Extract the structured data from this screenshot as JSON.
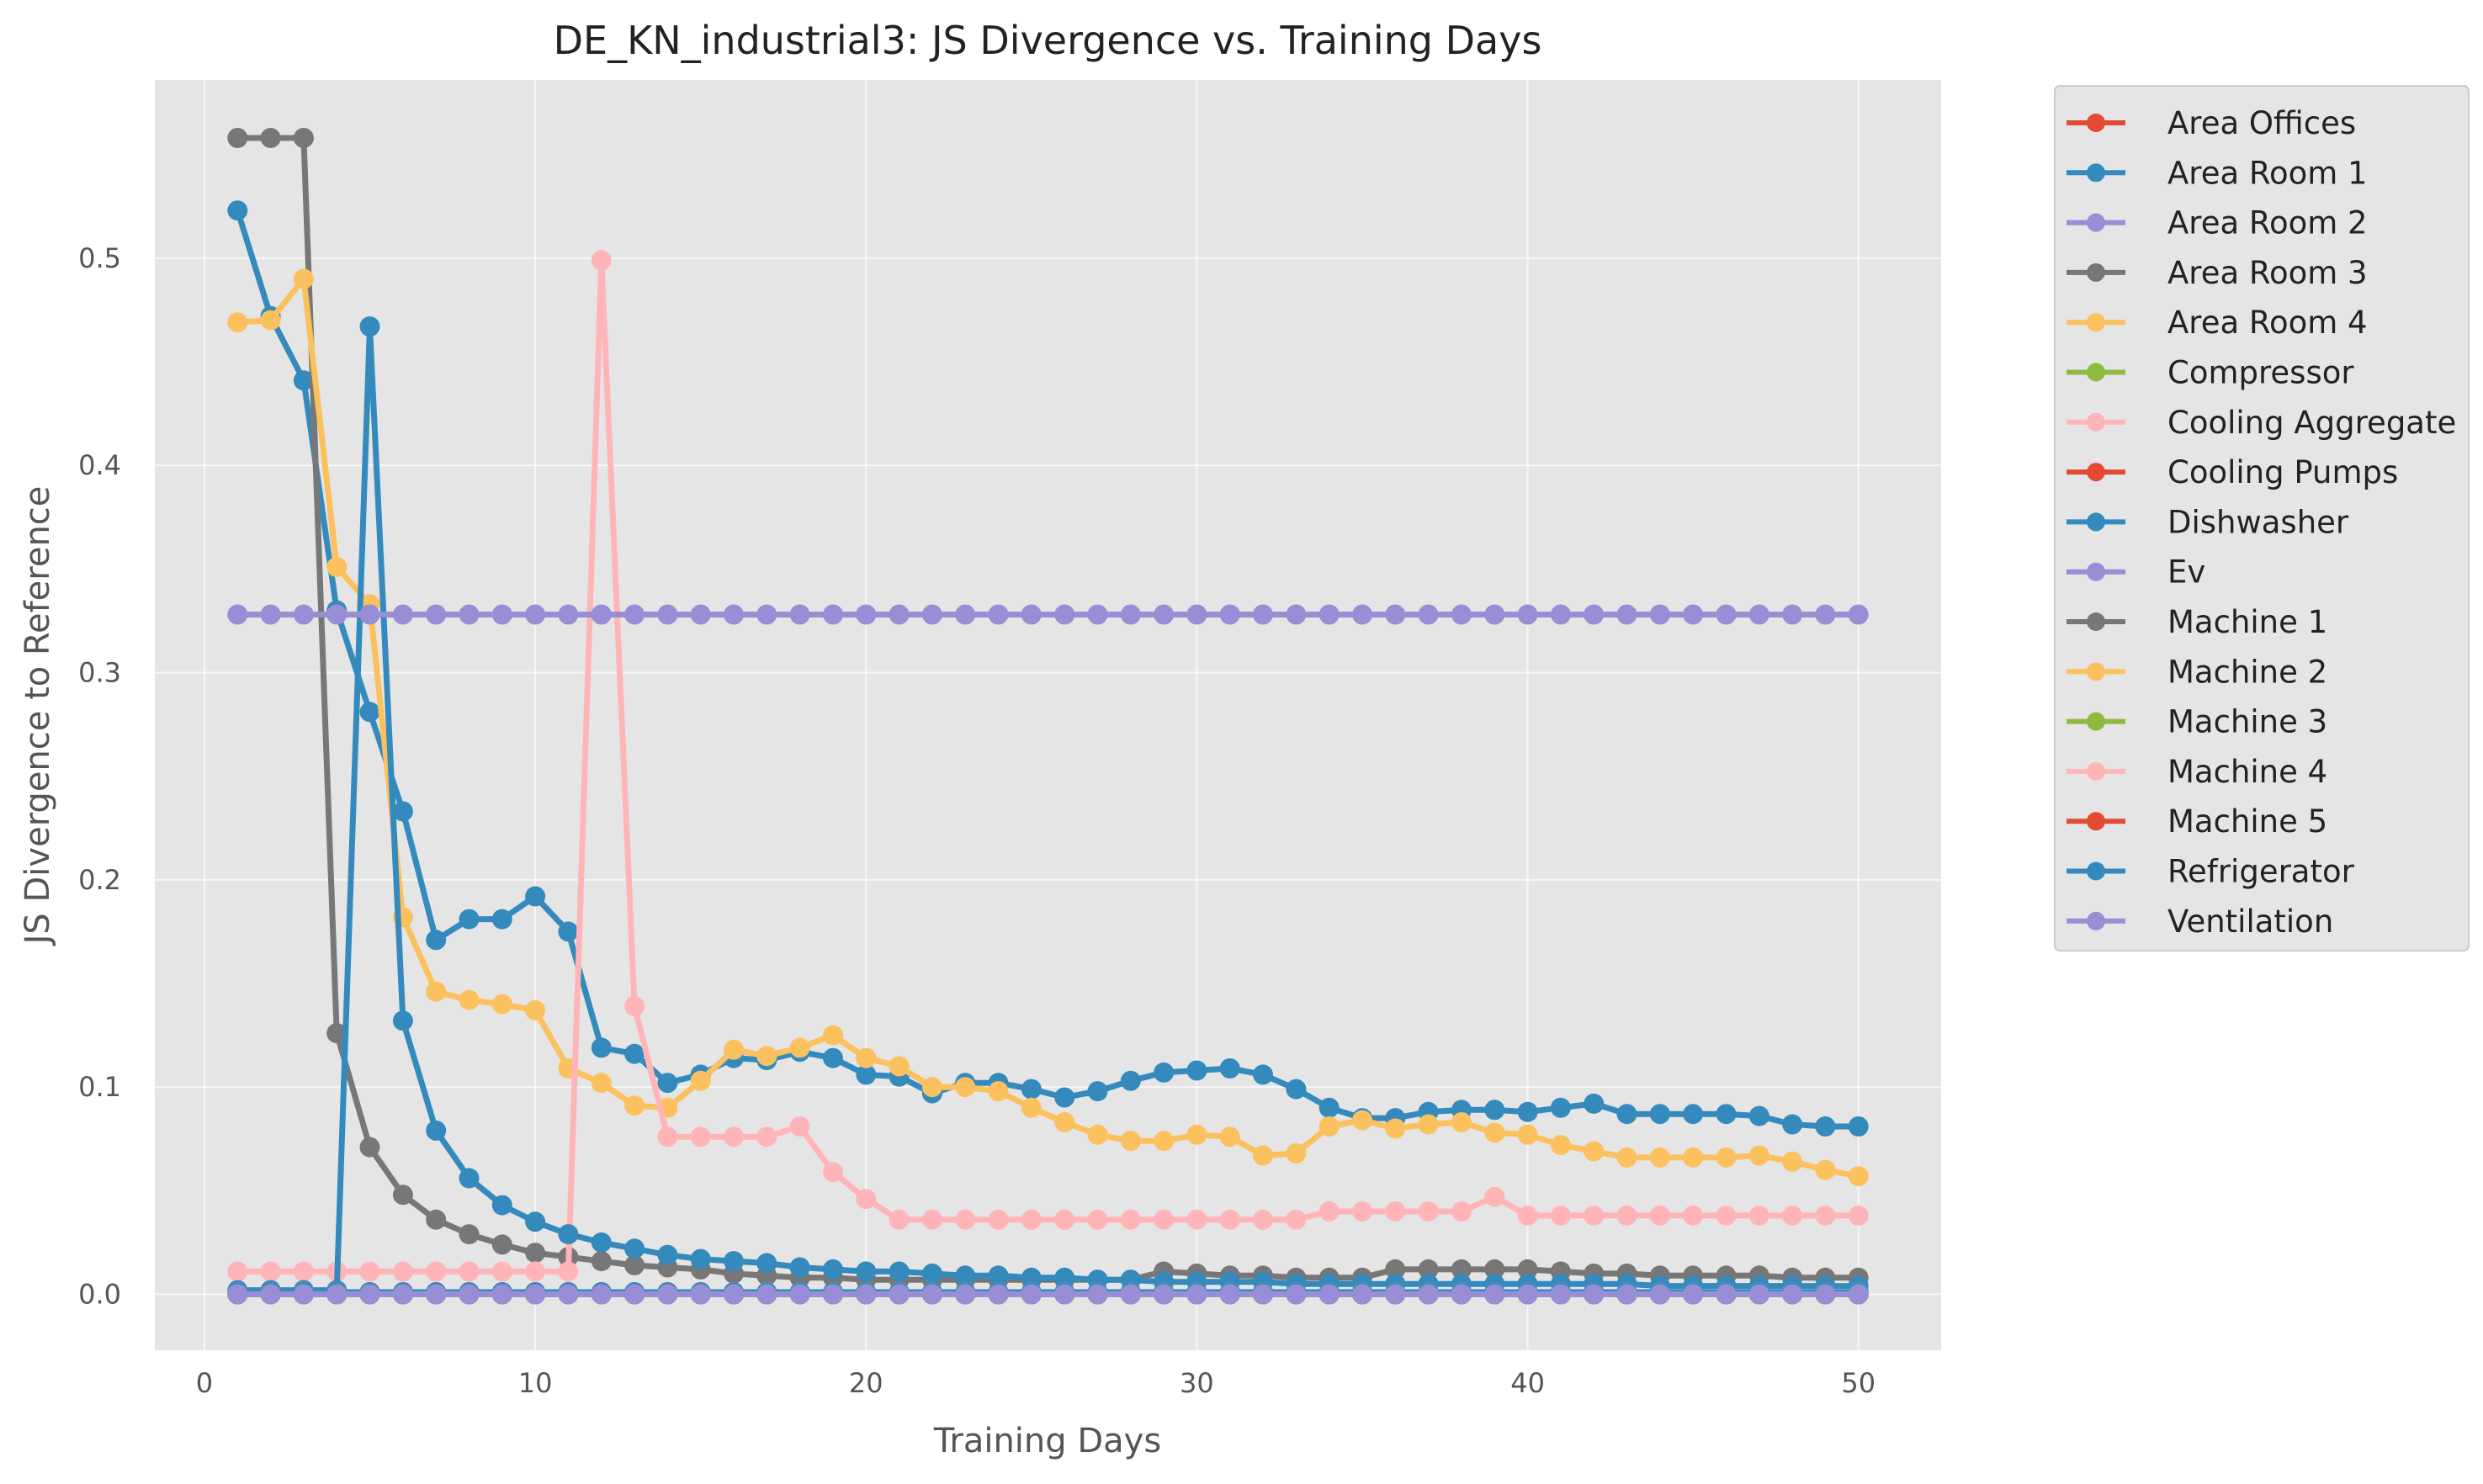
{
  "chart_data": {
    "type": "line",
    "title": "DE_KN_industrial3: JS Divergence vs. Training Days",
    "xlabel": "Training Days",
    "ylabel": "JS Divergence to Reference",
    "xlim": [
      -1.5,
      52.5
    ],
    "ylim": [
      -0.027,
      0.586
    ],
    "xticks": [
      0,
      10,
      20,
      30,
      40,
      50
    ],
    "yticks": [
      0.0,
      0.1,
      0.2,
      0.3,
      0.4,
      0.5
    ],
    "ytick_labels": [
      "0.0",
      "0.1",
      "0.2",
      "0.3",
      "0.4",
      "0.5"
    ],
    "grid": true,
    "legend_position": "outside-right",
    "x": [
      1,
      2,
      3,
      4,
      5,
      6,
      7,
      8,
      9,
      10,
      11,
      12,
      13,
      14,
      15,
      16,
      17,
      18,
      19,
      20,
      21,
      22,
      23,
      24,
      25,
      26,
      27,
      28,
      29,
      30,
      31,
      32,
      33,
      34,
      35,
      36,
      37,
      38,
      39,
      40,
      41,
      42,
      43,
      44,
      45,
      46,
      47,
      48,
      49,
      50
    ],
    "series": [
      {
        "name": "Area Offices",
        "color": "#E24A33",
        "values": [
          0.001,
          0.001,
          0.001,
          0.001,
          0.001,
          0.001,
          0.001,
          0.001,
          0.001,
          0.001,
          0.001,
          0.001,
          0.001,
          0.001,
          0.001,
          0.001,
          0.001,
          0.001,
          0.001,
          0.001,
          0.001,
          0.001,
          0.001,
          0.001,
          0.001,
          0.001,
          0.001,
          0.001,
          0.001,
          0.001,
          0.001,
          0.001,
          0.001,
          0.001,
          0.001,
          0.001,
          0.001,
          0.001,
          0.001,
          0.001,
          0.001,
          0.001,
          0.001,
          0.001,
          0.001,
          0.001,
          0.001,
          0.001,
          0.001,
          0.001
        ]
      },
      {
        "name": "Area Room 1",
        "color": "#348ABD",
        "values": [
          0.523,
          0.472,
          0.441,
          0.33,
          0.281,
          0.233,
          0.171,
          0.181,
          0.181,
          0.192,
          0.175,
          0.119,
          0.116,
          0.102,
          0.106,
          0.114,
          0.113,
          0.117,
          0.114,
          0.106,
          0.105,
          0.097,
          0.102,
          0.102,
          0.099,
          0.095,
          0.098,
          0.103,
          0.107,
          0.108,
          0.109,
          0.106,
          0.099,
          0.09,
          0.085,
          0.085,
          0.088,
          0.089,
          0.089,
          0.088,
          0.09,
          0.092,
          0.087,
          0.087,
          0.087,
          0.087,
          0.086,
          0.082,
          0.081,
          0.081
        ]
      },
      {
        "name": "Area Room 2",
        "color": "#988ED5",
        "values": [
          0.0,
          0.0,
          0.0,
          0.0,
          0.0,
          0.0,
          0.0,
          0.0,
          0.0,
          0.0,
          0.0,
          0.0,
          0.0,
          0.0,
          0.0,
          0.0,
          0.0,
          0.0,
          0.0,
          0.0,
          0.0,
          0.0,
          0.0,
          0.0,
          0.0,
          0.0,
          0.0,
          0.0,
          0.0,
          0.0,
          0.0,
          0.0,
          0.0,
          0.0,
          0.0,
          0.0,
          0.0,
          0.0,
          0.0,
          0.0,
          0.0,
          0.0,
          0.0,
          0.0,
          0.0,
          0.0,
          0.0,
          0.0,
          0.0,
          0.0
        ]
      },
      {
        "name": "Area Room 3",
        "color": "#777777",
        "values": [
          0.558,
          0.558,
          0.558,
          0.126,
          0.071,
          0.048,
          0.036,
          0.029,
          0.024,
          0.02,
          0.018,
          0.016,
          0.014,
          0.013,
          0.012,
          0.01,
          0.009,
          0.008,
          0.008,
          0.007,
          0.007,
          0.007,
          0.007,
          0.007,
          0.007,
          0.007,
          0.007,
          0.007,
          0.011,
          0.01,
          0.009,
          0.009,
          0.008,
          0.008,
          0.008,
          0.012,
          0.012,
          0.012,
          0.012,
          0.012,
          0.011,
          0.01,
          0.01,
          0.009,
          0.009,
          0.009,
          0.009,
          0.008,
          0.008,
          0.008
        ]
      },
      {
        "name": "Area Room 4",
        "color": "#FBC15E",
        "values": [
          0.469,
          0.47,
          0.49,
          0.351,
          0.333,
          0.182,
          0.146,
          0.142,
          0.14,
          0.137,
          0.109,
          0.102,
          0.091,
          0.09,
          0.103,
          0.118,
          0.115,
          0.119,
          0.125,
          0.114,
          0.11,
          0.1,
          0.1,
          0.098,
          0.09,
          0.083,
          0.077,
          0.074,
          0.074,
          0.077,
          0.076,
          0.067,
          0.068,
          0.081,
          0.084,
          0.08,
          0.082,
          0.083,
          0.078,
          0.077,
          0.072,
          0.069,
          0.066,
          0.066,
          0.066,
          0.066,
          0.067,
          0.064,
          0.06,
          0.057
        ]
      },
      {
        "name": "Compressor",
        "color": "#8EBA42",
        "values": [
          0.0,
          0.0,
          0.0,
          0.0,
          0.0,
          0.0,
          0.0,
          0.0,
          0.0,
          0.0,
          0.0,
          0.0,
          0.0,
          0.0,
          0.0,
          0.0,
          0.0,
          0.0,
          0.0,
          0.0,
          0.0,
          0.0,
          0.0,
          0.0,
          0.0,
          0.0,
          0.0,
          0.0,
          0.0,
          0.0,
          0.0,
          0.0,
          0.0,
          0.0,
          0.0,
          0.0,
          0.0,
          0.0,
          0.0,
          0.0,
          0.0,
          0.0,
          0.0,
          0.0,
          0.0,
          0.0,
          0.0,
          0.0,
          0.0,
          0.0
        ]
      },
      {
        "name": "Cooling Aggregate",
        "color": "#FFB5B8",
        "values": [
          0.011,
          0.011,
          0.011,
          0.011,
          0.011,
          0.011,
          0.011,
          0.011,
          0.011,
          0.011,
          0.011,
          0.499,
          0.139,
          0.076,
          0.076,
          0.076,
          0.076,
          0.081,
          0.059,
          0.046,
          0.036,
          0.036,
          0.036,
          0.036,
          0.036,
          0.036,
          0.036,
          0.036,
          0.036,
          0.036,
          0.036,
          0.036,
          0.036,
          0.04,
          0.04,
          0.04,
          0.04,
          0.04,
          0.047,
          0.038,
          0.038,
          0.038,
          0.038,
          0.038,
          0.038,
          0.038,
          0.038,
          0.038,
          0.038,
          0.038
        ]
      },
      {
        "name": "Cooling Pumps",
        "color": "#E24A33",
        "values": [
          0.0,
          0.0,
          0.0,
          0.0,
          0.0,
          0.0,
          0.0,
          0.0,
          0.0,
          0.0,
          0.0,
          0.0,
          0.0,
          0.0,
          0.0,
          0.0,
          0.0,
          0.0,
          0.0,
          0.0,
          0.0,
          0.0,
          0.0,
          0.0,
          0.0,
          0.0,
          0.0,
          0.0,
          0.0,
          0.0,
          0.0,
          0.0,
          0.0,
          0.0,
          0.0,
          0.0,
          0.0,
          0.0,
          0.0,
          0.0,
          0.0,
          0.0,
          0.0,
          0.0,
          0.0,
          0.0,
          0.0,
          0.0,
          0.0,
          0.0
        ]
      },
      {
        "name": "Dishwasher",
        "color": "#348ABD",
        "values": [
          0.002,
          0.002,
          0.002,
          0.002,
          0.467,
          0.132,
          0.079,
          0.056,
          0.043,
          0.035,
          0.029,
          0.025,
          0.022,
          0.019,
          0.017,
          0.016,
          0.015,
          0.013,
          0.012,
          0.011,
          0.011,
          0.01,
          0.009,
          0.009,
          0.008,
          0.008,
          0.007,
          0.007,
          0.006,
          0.006,
          0.006,
          0.006,
          0.005,
          0.005,
          0.005,
          0.005,
          0.005,
          0.005,
          0.005,
          0.005,
          0.005,
          0.005,
          0.005,
          0.004,
          0.004,
          0.004,
          0.004,
          0.004,
          0.004,
          0.004
        ]
      },
      {
        "name": "Ev",
        "color": "#988ED5",
        "values": [
          0.328,
          0.328,
          0.328,
          0.328,
          0.328,
          0.328,
          0.328,
          0.328,
          0.328,
          0.328,
          0.328,
          0.328,
          0.328,
          0.328,
          0.328,
          0.328,
          0.328,
          0.328,
          0.328,
          0.328,
          0.328,
          0.328,
          0.328,
          0.328,
          0.328,
          0.328,
          0.328,
          0.328,
          0.328,
          0.328,
          0.328,
          0.328,
          0.328,
          0.328,
          0.328,
          0.328,
          0.328,
          0.328,
          0.328,
          0.328,
          0.328,
          0.328,
          0.328,
          0.328,
          0.328,
          0.328,
          0.328,
          0.328,
          0.328,
          0.328
        ]
      },
      {
        "name": "Machine 1",
        "color": "#777777",
        "values": [
          0.001,
          0.001,
          0.001,
          0.001,
          0.001,
          0.001,
          0.001,
          0.001,
          0.001,
          0.001,
          0.001,
          0.001,
          0.001,
          0.001,
          0.001,
          0.001,
          0.001,
          0.001,
          0.001,
          0.001,
          0.001,
          0.001,
          0.001,
          0.001,
          0.001,
          0.001,
          0.001,
          0.001,
          0.001,
          0.001,
          0.001,
          0.001,
          0.001,
          0.001,
          0.001,
          0.001,
          0.001,
          0.001,
          0.001,
          0.001,
          0.001,
          0.001,
          0.001,
          0.001,
          0.001,
          0.001,
          0.001,
          0.001,
          0.001,
          0.001
        ]
      },
      {
        "name": "Machine 2",
        "color": "#FBC15E",
        "values": [
          0.001,
          0.001,
          0.001,
          0.001,
          0.001,
          0.001,
          0.001,
          0.001,
          0.001,
          0.001,
          0.001,
          0.001,
          0.001,
          0.001,
          0.001,
          0.001,
          0.001,
          0.001,
          0.001,
          0.001,
          0.001,
          0.001,
          0.001,
          0.001,
          0.001,
          0.001,
          0.001,
          0.001,
          0.001,
          0.001,
          0.001,
          0.001,
          0.001,
          0.001,
          0.001,
          0.001,
          0.001,
          0.001,
          0.001,
          0.001,
          0.001,
          0.001,
          0.001,
          0.001,
          0.001,
          0.001,
          0.001,
          0.001,
          0.001,
          0.001
        ]
      },
      {
        "name": "Machine 3",
        "color": "#8EBA42",
        "values": [
          0.0,
          0.0,
          0.0,
          0.0,
          0.0,
          0.0,
          0.0,
          0.0,
          0.0,
          0.0,
          0.0,
          0.0,
          0.0,
          0.0,
          0.0,
          0.0,
          0.0,
          0.0,
          0.0,
          0.0,
          0.0,
          0.0,
          0.0,
          0.0,
          0.0,
          0.0,
          0.0,
          0.0,
          0.0,
          0.0,
          0.0,
          0.0,
          0.0,
          0.0,
          0.0,
          0.0,
          0.0,
          0.0,
          0.0,
          0.0,
          0.0,
          0.0,
          0.0,
          0.0,
          0.0,
          0.0,
          0.0,
          0.0,
          0.0,
          0.0
        ]
      },
      {
        "name": "Machine 4",
        "color": "#FFB5B8",
        "values": [
          0.001,
          0.001,
          0.001,
          0.001,
          0.001,
          0.001,
          0.001,
          0.001,
          0.001,
          0.001,
          0.001,
          0.001,
          0.001,
          0.001,
          0.001,
          0.001,
          0.001,
          0.001,
          0.001,
          0.001,
          0.001,
          0.001,
          0.001,
          0.001,
          0.001,
          0.001,
          0.001,
          0.001,
          0.001,
          0.001,
          0.001,
          0.001,
          0.001,
          0.001,
          0.001,
          0.001,
          0.001,
          0.001,
          0.001,
          0.001,
          0.001,
          0.001,
          0.001,
          0.001,
          0.001,
          0.001,
          0.001,
          0.001,
          0.001,
          0.001
        ]
      },
      {
        "name": "Machine 5",
        "color": "#E24A33",
        "values": [
          0.0,
          0.0,
          0.0,
          0.0,
          0.0,
          0.0,
          0.0,
          0.0,
          0.0,
          0.0,
          0.0,
          0.0,
          0.0,
          0.0,
          0.0,
          0.0,
          0.0,
          0.0,
          0.0,
          0.0,
          0.0,
          0.0,
          0.0,
          0.0,
          0.0,
          0.0,
          0.0,
          0.0,
          0.0,
          0.0,
          0.0,
          0.0,
          0.0,
          0.0,
          0.0,
          0.0,
          0.0,
          0.0,
          0.0,
          0.0,
          0.0,
          0.0,
          0.0,
          0.0,
          0.0,
          0.0,
          0.0,
          0.0,
          0.0,
          0.0
        ]
      },
      {
        "name": "Refrigerator",
        "color": "#348ABD",
        "values": [
          0.001,
          0.001,
          0.001,
          0.001,
          0.001,
          0.001,
          0.001,
          0.001,
          0.001,
          0.001,
          0.001,
          0.001,
          0.001,
          0.001,
          0.001,
          0.001,
          0.001,
          0.001,
          0.001,
          0.001,
          0.001,
          0.001,
          0.001,
          0.001,
          0.001,
          0.001,
          0.001,
          0.001,
          0.001,
          0.001,
          0.001,
          0.001,
          0.001,
          0.001,
          0.001,
          0.001,
          0.001,
          0.001,
          0.001,
          0.001,
          0.001,
          0.001,
          0.001,
          0.001,
          0.001,
          0.001,
          0.001,
          0.001,
          0.001,
          0.001
        ]
      },
      {
        "name": "Ventilation",
        "color": "#988ED5",
        "values": [
          0.0,
          0.0,
          0.0,
          0.0,
          0.0,
          0.0,
          0.0,
          0.0,
          0.0,
          0.0,
          0.0,
          0.0,
          0.0,
          0.0,
          0.0,
          0.0,
          0.0,
          0.0,
          0.0,
          0.0,
          0.0,
          0.0,
          0.0,
          0.0,
          0.0,
          0.0,
          0.0,
          0.0,
          0.0,
          0.0,
          0.0,
          0.0,
          0.0,
          0.0,
          0.0,
          0.0,
          0.0,
          0.0,
          0.0,
          0.0,
          0.0,
          0.0,
          0.0,
          0.0,
          0.0,
          0.0,
          0.0,
          0.0,
          0.0,
          0.0
        ]
      }
    ]
  }
}
